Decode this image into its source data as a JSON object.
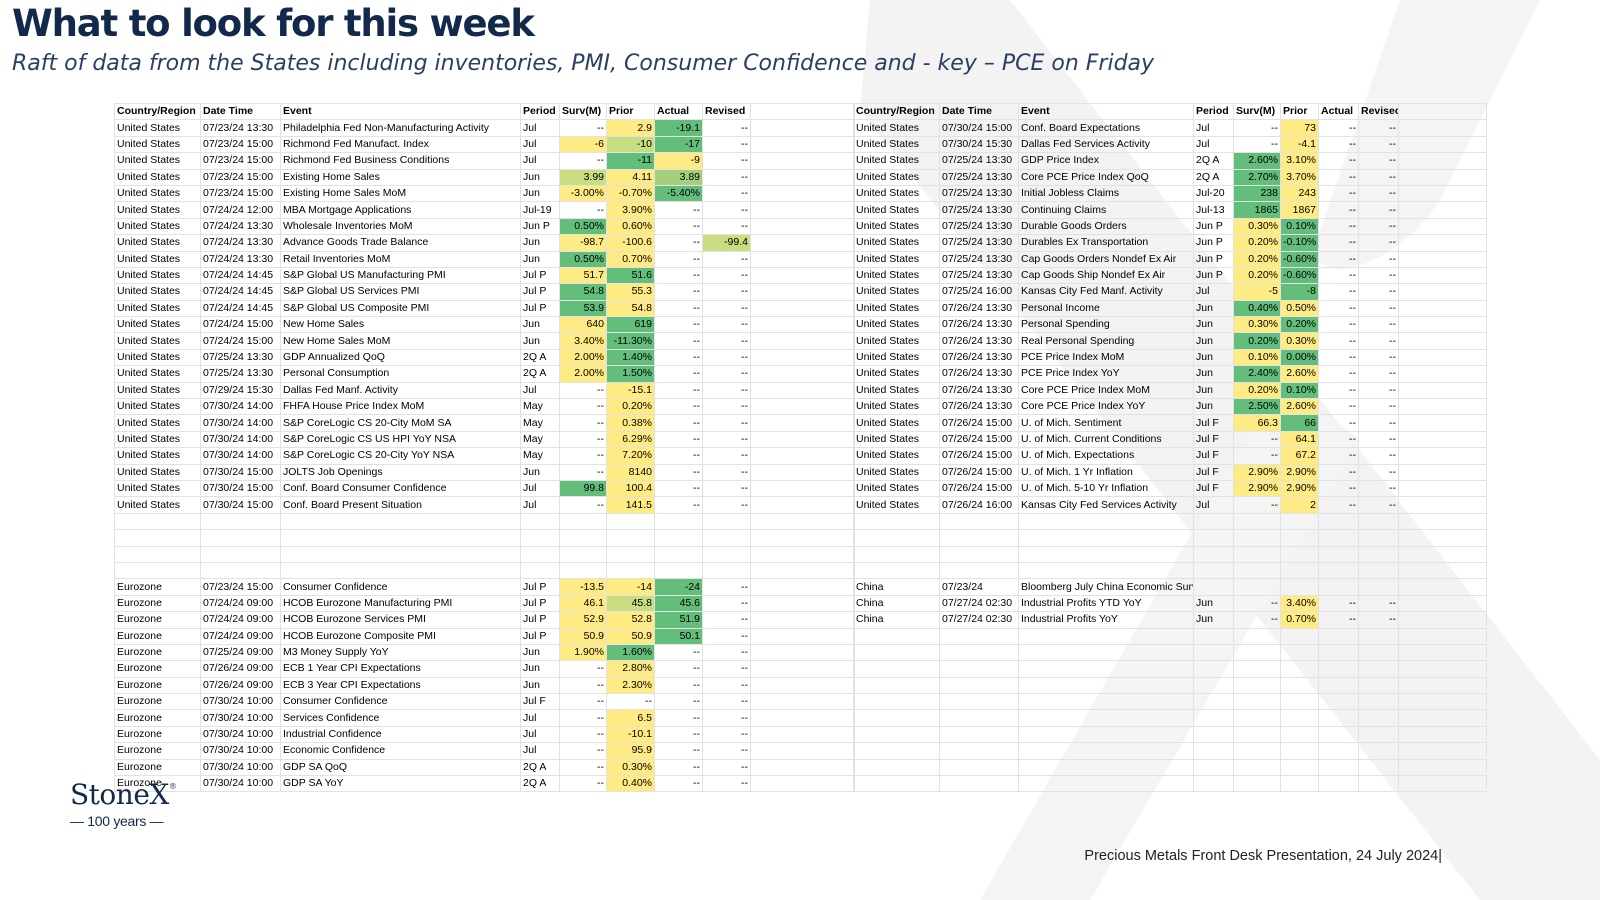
{
  "header": {
    "title": "What to look for this week",
    "subtitle": "Raft of data from the States including inventories, PMI, Consumer Confidence and - key – PCE on Friday"
  },
  "colors": {
    "title": "#13294b",
    "heat_dark_green": "#63be7b",
    "heat_mid_green": "#a4d07d",
    "heat_light_green": "#c8de81",
    "heat_yellow": "#ffeb84"
  },
  "watermark_icon": "stonex-x-watermark",
  "columns": [
    "Country/Region",
    "Date Time",
    "Event",
    "Period",
    "Surv(M)",
    "Prior",
    "Actual",
    "Revised"
  ],
  "columns_right": [
    "Country/Region",
    "Date Time",
    "Event",
    "Period",
    "Surv(M)",
    "Prior",
    "Actual",
    "Revisec"
  ],
  "left_table": {
    "rows": [
      [
        "United States",
        "07/23/24 13:30",
        "Philadelphia Fed Non-Manufacturing Activity",
        "Jul",
        "--",
        "2.9",
        "-19.1",
        "--"
      ],
      [
        "United States",
        "07/23/24 15:00",
        "Richmond Fed Manufact. Index",
        "Jul",
        "-6",
        "-10",
        "-17",
        "--"
      ],
      [
        "United States",
        "07/23/24 15:00",
        "Richmond Fed Business Conditions",
        "Jul",
        "--",
        "-11",
        "-9",
        "--"
      ],
      [
        "United States",
        "07/23/24 15:00",
        "Existing Home Sales",
        "Jun",
        "3.99",
        "4.11",
        "3.89",
        "--"
      ],
      [
        "United States",
        "07/23/24 15:00",
        "Existing Home Sales MoM",
        "Jun",
        "-3.00%",
        "-0.70%",
        "-5.40%",
        "--"
      ],
      [
        "United States",
        "07/24/24 12:00",
        "MBA Mortgage Applications",
        "Jul-19",
        "--",
        "3.90%",
        "--",
        "--"
      ],
      [
        "United States",
        "07/24/24 13:30",
        "Wholesale Inventories MoM",
        "Jun P",
        "0.50%",
        "0.60%",
        "--",
        "--"
      ],
      [
        "United States",
        "07/24/24 13:30",
        "Advance Goods Trade Balance",
        "Jun",
        "-98.7",
        "-100.6",
        "--",
        "-99.4"
      ],
      [
        "United States",
        "07/24/24 13:30",
        "Retail Inventories MoM",
        "Jun",
        "0.50%",
        "0.70%",
        "--",
        "--"
      ],
      [
        "United States",
        "07/24/24 14:45",
        "S&P Global US Manufacturing PMI",
        "Jul P",
        "51.7",
        "51.6",
        "--",
        "--"
      ],
      [
        "United States",
        "07/24/24 14:45",
        "S&P Global US Services PMI",
        "Jul P",
        "54.8",
        "55.3",
        "--",
        "--"
      ],
      [
        "United States",
        "07/24/24 14:45",
        "S&P Global US Composite PMI",
        "Jul P",
        "53.9",
        "54.8",
        "--",
        "--"
      ],
      [
        "United States",
        "07/24/24 15:00",
        "New Home Sales",
        "Jun",
        "640",
        "619",
        "--",
        "--"
      ],
      [
        "United States",
        "07/24/24 15:00",
        "New Home Sales MoM",
        "Jun",
        "3.40%",
        "-11.30%",
        "--",
        "--"
      ],
      [
        "United States",
        "07/25/24 13:30",
        "GDP Annualized QoQ",
        "2Q A",
        "2.00%",
        "1.40%",
        "--",
        "--"
      ],
      [
        "United States",
        "07/25/24 13:30",
        "Personal Consumption",
        "2Q A",
        "2.00%",
        "1.50%",
        "--",
        "--"
      ],
      [
        "United States",
        "07/29/24 15:30",
        "Dallas Fed Manf. Activity",
        "Jul",
        "--",
        "-15.1",
        "--",
        "--"
      ],
      [
        "United States",
        "07/30/24 14:00",
        "FHFA House Price Index MoM",
        "May",
        "--",
        "0.20%",
        "--",
        "--"
      ],
      [
        "United States",
        "07/30/24 14:00",
        "S&P CoreLogic CS 20-City MoM SA",
        "May",
        "--",
        "0.38%",
        "--",
        "--"
      ],
      [
        "United States",
        "07/30/24 14:00",
        "S&P CoreLogic CS US HPI YoY NSA",
        "May",
        "--",
        "6.29%",
        "--",
        "--"
      ],
      [
        "United States",
        "07/30/24 14:00",
        "S&P CoreLogic CS 20-City YoY NSA",
        "May",
        "--",
        "7.20%",
        "--",
        "--"
      ],
      [
        "United States",
        "07/30/24 15:00",
        "JOLTS Job Openings",
        "Jun",
        "--",
        "8140",
        "--",
        "--"
      ],
      [
        "United States",
        "07/30/24 15:00",
        "Conf. Board Consumer Confidence",
        "Jul",
        "99.8",
        "100.4",
        "--",
        "--"
      ],
      [
        "United States",
        "07/30/24 15:00",
        "Conf. Board Present Situation",
        "Jul",
        "--",
        "141.5",
        "--",
        "--"
      ],
      [
        "",
        "",
        "",
        "",
        "",
        "",
        "",
        ""
      ],
      [
        "",
        "",
        "",
        "",
        "",
        "",
        "",
        ""
      ],
      [
        "",
        "",
        "",
        "",
        "",
        "",
        "",
        ""
      ],
      [
        "",
        "",
        "",
        "",
        "",
        "",
        "",
        ""
      ],
      [
        "Eurozone",
        "07/23/24 15:00",
        "Consumer Confidence",
        "Jul P",
        "-13.5",
        "-14",
        "-24",
        "--"
      ],
      [
        "Eurozone",
        "07/24/24 09:00",
        "HCOB Eurozone Manufacturing PMI",
        "Jul P",
        "46.1",
        "45.8",
        "45.6",
        "--"
      ],
      [
        "Eurozone",
        "07/24/24 09:00",
        "HCOB Eurozone Services PMI",
        "Jul P",
        "52.9",
        "52.8",
        "51.9",
        "--"
      ],
      [
        "Eurozone",
        "07/24/24 09:00",
        "HCOB Eurozone Composite PMI",
        "Jul P",
        "50.9",
        "50.9",
        "50.1",
        "--"
      ],
      [
        "Eurozone",
        "07/25/24 09:00",
        "M3 Money Supply YoY",
        "Jun",
        "1.90%",
        "1.60%",
        "--",
        "--"
      ],
      [
        "Eurozone",
        "07/26/24 09:00",
        "ECB 1 Year CPI Expectations",
        "Jun",
        "--",
        "2.80%",
        "--",
        "--"
      ],
      [
        "Eurozone",
        "07/26/24 09:00",
        "ECB 3 Year CPI Expectations",
        "Jun",
        "--",
        "2.30%",
        "--",
        "--"
      ],
      [
        "Eurozone",
        "07/30/24 10:00",
        "Consumer Confidence",
        "Jul F",
        "--",
        "--",
        "--",
        "--"
      ],
      [
        "Eurozone",
        "07/30/24 10:00",
        "Services Confidence",
        "Jul",
        "--",
        "6.5",
        "--",
        "--"
      ],
      [
        "Eurozone",
        "07/30/24 10:00",
        "Industrial Confidence",
        "Jul",
        "--",
        "-10.1",
        "--",
        "--"
      ],
      [
        "Eurozone",
        "07/30/24 10:00",
        "Economic Confidence",
        "Jul",
        "--",
        "95.9",
        "--",
        "--"
      ],
      [
        "Eurozone",
        "07/30/24 10:00",
        "GDP SA QoQ",
        "2Q A",
        "--",
        "0.30%",
        "--",
        "--"
      ],
      [
        "Eurozone",
        "07/30/24 10:00",
        "GDP SA YoY",
        "2Q A",
        "--",
        "0.40%",
        "--",
        "--"
      ]
    ],
    "fills": [
      [
        "",
        "y",
        "g1",
        ""
      ],
      [
        "y",
        "g3",
        "g1",
        ""
      ],
      [
        "",
        "g1",
        "y",
        ""
      ],
      [
        "g3",
        "y",
        "g2",
        ""
      ],
      [
        "y",
        "y",
        "g1",
        ""
      ],
      [
        "",
        "y",
        "",
        ""
      ],
      [
        "g1",
        "y",
        "",
        ""
      ],
      [
        "y",
        "y",
        "",
        "g3"
      ],
      [
        "g1",
        "y",
        "",
        ""
      ],
      [
        "y",
        "g1",
        "",
        ""
      ],
      [
        "g1",
        "y",
        "",
        ""
      ],
      [
        "g1",
        "y",
        "",
        ""
      ],
      [
        "y",
        "g1",
        "",
        ""
      ],
      [
        "y",
        "g1",
        "",
        ""
      ],
      [
        "y",
        "g1",
        "",
        ""
      ],
      [
        "y",
        "g1",
        "",
        ""
      ],
      [
        "",
        "y",
        "",
        ""
      ],
      [
        "",
        "y",
        "",
        ""
      ],
      [
        "",
        "y",
        "",
        ""
      ],
      [
        "",
        "y",
        "",
        ""
      ],
      [
        "",
        "y",
        "",
        ""
      ],
      [
        "",
        "y",
        "",
        ""
      ],
      [
        "g1",
        "y",
        "",
        ""
      ],
      [
        "",
        "y",
        "",
        ""
      ],
      [
        "",
        "",
        "",
        ""
      ],
      [
        "",
        "",
        "",
        ""
      ],
      [
        "",
        "",
        "",
        ""
      ],
      [
        "",
        "",
        "",
        ""
      ],
      [
        "y",
        "y",
        "g1",
        ""
      ],
      [
        "y",
        "g3",
        "g1",
        ""
      ],
      [
        "y",
        "y",
        "g1",
        ""
      ],
      [
        "y",
        "y",
        "g1",
        ""
      ],
      [
        "y",
        "g1",
        "",
        ""
      ],
      [
        "",
        "y",
        "",
        ""
      ],
      [
        "",
        "y",
        "",
        ""
      ],
      [
        "",
        "",
        "",
        ""
      ],
      [
        "",
        "y",
        "",
        ""
      ],
      [
        "",
        "y",
        "",
        ""
      ],
      [
        "",
        "y",
        "",
        ""
      ],
      [
        "",
        "y",
        "",
        ""
      ],
      [
        "",
        "y",
        "",
        ""
      ]
    ]
  },
  "right_table": {
    "rows": [
      [
        "United States",
        "07/30/24 15:00",
        "Conf. Board Expectations",
        "Jul",
        "--",
        "73",
        "--",
        "--"
      ],
      [
        "United States",
        "07/30/24 15:30",
        "Dallas Fed Services Activity",
        "Jul",
        "--",
        "-4.1",
        "--",
        "--"
      ],
      [
        "United States",
        "07/25/24 13:30",
        "GDP Price Index",
        "2Q A",
        "2.60%",
        "3.10%",
        "--",
        "--"
      ],
      [
        "United States",
        "07/25/24 13:30",
        "Core PCE Price Index QoQ",
        "2Q A",
        "2.70%",
        "3.70%",
        "--",
        "--"
      ],
      [
        "United States",
        "07/25/24 13:30",
        "Initial Jobless Claims",
        "Jul-20",
        "238",
        "243",
        "--",
        "--"
      ],
      [
        "United States",
        "07/25/24 13:30",
        "Continuing Claims",
        "Jul-13",
        "1865",
        "1867",
        "--",
        "--"
      ],
      [
        "United States",
        "07/25/24 13:30",
        "Durable Goods Orders",
        "Jun P",
        "0.30%",
        "0.10%",
        "--",
        "--"
      ],
      [
        "United States",
        "07/25/24 13:30",
        "Durables Ex Transportation",
        "Jun P",
        "0.20%",
        "-0.10%",
        "--",
        "--"
      ],
      [
        "United States",
        "07/25/24 13:30",
        "Cap Goods Orders Nondef Ex Air",
        "Jun P",
        "0.20%",
        "-0.60%",
        "--",
        "--"
      ],
      [
        "United States",
        "07/25/24 13:30",
        "Cap Goods Ship Nondef Ex Air",
        "Jun P",
        "0.20%",
        "-0.60%",
        "--",
        "--"
      ],
      [
        "United States",
        "07/25/24 16:00",
        "Kansas City Fed Manf. Activity",
        "Jul",
        "-5",
        "-8",
        "--",
        "--"
      ],
      [
        "United States",
        "07/26/24 13:30",
        "Personal Income",
        "Jun",
        "0.40%",
        "0.50%",
        "--",
        "--"
      ],
      [
        "United States",
        "07/26/24 13:30",
        "Personal Spending",
        "Jun",
        "0.30%",
        "0.20%",
        "--",
        "--"
      ],
      [
        "United States",
        "07/26/24 13:30",
        "Real Personal Spending",
        "Jun",
        "0.20%",
        "0.30%",
        "--",
        "--"
      ],
      [
        "United States",
        "07/26/24 13:30",
        "PCE Price Index MoM",
        "Jun",
        "0.10%",
        "0.00%",
        "--",
        "--"
      ],
      [
        "United States",
        "07/26/24 13:30",
        "PCE Price Index YoY",
        "Jun",
        "2.40%",
        "2.60%",
        "--",
        "--"
      ],
      [
        "United States",
        "07/26/24 13:30",
        "Core PCE Price Index MoM",
        "Jun",
        "0.20%",
        "0.10%",
        "--",
        "--"
      ],
      [
        "United States",
        "07/26/24 13:30",
        "Core PCE Price Index YoY",
        "Jun",
        "2.50%",
        "2.60%",
        "--",
        "--"
      ],
      [
        "United States",
        "07/26/24 15:00",
        "U. of Mich. Sentiment",
        "Jul F",
        "66.3",
        "66",
        "--",
        "--"
      ],
      [
        "United States",
        "07/26/24 15:00",
        "U. of Mich. Current Conditions",
        "Jul F",
        "--",
        "64.1",
        "--",
        "--"
      ],
      [
        "United States",
        "07/26/24 15:00",
        "U. of Mich. Expectations",
        "Jul F",
        "--",
        "67.2",
        "--",
        "--"
      ],
      [
        "United States",
        "07/26/24 15:00",
        "U. of Mich. 1 Yr Inflation",
        "Jul F",
        "2.90%",
        "2.90%",
        "--",
        "--"
      ],
      [
        "United States",
        "07/26/24 15:00",
        "U. of Mich. 5-10 Yr Inflation",
        "Jul F",
        "2.90%",
        "2.90%",
        "--",
        "--"
      ],
      [
        "United States",
        "07/26/24 16:00",
        "Kansas City Fed Services Activity",
        "Jul",
        "--",
        "2",
        "--",
        "--"
      ],
      [
        "",
        "",
        "",
        "",
        "",
        "",
        "",
        ""
      ],
      [
        "",
        "",
        "",
        "",
        "",
        "",
        "",
        ""
      ],
      [
        "",
        "",
        "",
        "",
        "",
        "",
        "",
        ""
      ],
      [
        "",
        "",
        "",
        "",
        "",
        "",
        "",
        ""
      ],
      [
        "China",
        "07/23/24",
        "Bloomberg July China Economic Survey",
        "",
        "",
        "",
        "",
        ""
      ],
      [
        "China",
        "07/27/24 02:30",
        "Industrial Profits YTD YoY",
        "Jun",
        "--",
        "3.40%",
        "--",
        "--"
      ],
      [
        "China",
        "07/27/24 02:30",
        "Industrial Profits YoY",
        "Jun",
        "--",
        "0.70%",
        "--",
        "--"
      ],
      [
        "",
        "",
        "",
        "",
        "",
        "",
        "",
        ""
      ],
      [
        "",
        "",
        "",
        "",
        "",
        "",
        "",
        ""
      ],
      [
        "",
        "",
        "",
        "",
        "",
        "",
        "",
        ""
      ],
      [
        "",
        "",
        "",
        "",
        "",
        "",
        "",
        ""
      ],
      [
        "",
        "",
        "",
        "",
        "",
        "",
        "",
        ""
      ],
      [
        "",
        "",
        "",
        "",
        "",
        "",
        "",
        ""
      ],
      [
        "",
        "",
        "",
        "",
        "",
        "",
        "",
        ""
      ],
      [
        "",
        "",
        "",
        "",
        "",
        "",
        "",
        ""
      ],
      [
        "",
        "",
        "",
        "",
        "",
        "",
        "",
        ""
      ],
      [
        "",
        "",
        "",
        "",
        "",
        "",
        "",
        ""
      ]
    ],
    "fills": [
      [
        "",
        "y",
        "",
        ""
      ],
      [
        "",
        "y",
        "",
        ""
      ],
      [
        "g1",
        "y",
        "",
        ""
      ],
      [
        "g1",
        "y",
        "",
        ""
      ],
      [
        "g1",
        "y",
        "",
        ""
      ],
      [
        "g1",
        "y",
        "",
        ""
      ],
      [
        "y",
        "g1",
        "",
        ""
      ],
      [
        "y",
        "g1",
        "",
        ""
      ],
      [
        "y",
        "g1",
        "",
        ""
      ],
      [
        "y",
        "g1",
        "",
        ""
      ],
      [
        "y",
        "g1",
        "",
        ""
      ],
      [
        "g1",
        "y",
        "",
        ""
      ],
      [
        "y",
        "g1",
        "",
        ""
      ],
      [
        "g1",
        "y",
        "",
        ""
      ],
      [
        "y",
        "g1",
        "",
        ""
      ],
      [
        "g1",
        "y",
        "",
        ""
      ],
      [
        "y",
        "g1",
        "",
        ""
      ],
      [
        "g1",
        "y",
        "",
        ""
      ],
      [
        "y",
        "g1",
        "",
        ""
      ],
      [
        "",
        "y",
        "",
        ""
      ],
      [
        "",
        "y",
        "",
        ""
      ],
      [
        "y",
        "y",
        "",
        ""
      ],
      [
        "y",
        "y",
        "",
        ""
      ],
      [
        "",
        "y",
        "",
        ""
      ],
      [
        "",
        "",
        "",
        ""
      ],
      [
        "",
        "",
        "",
        ""
      ],
      [
        "",
        "",
        "",
        ""
      ],
      [
        "",
        "",
        "",
        ""
      ],
      [
        "",
        "",
        "",
        ""
      ],
      [
        "",
        "y",
        "",
        ""
      ],
      [
        "",
        "y",
        "",
        ""
      ],
      [
        "",
        "",
        "",
        ""
      ],
      [
        "",
        "",
        "",
        ""
      ],
      [
        "",
        "",
        "",
        ""
      ],
      [
        "",
        "",
        "",
        ""
      ],
      [
        "",
        "",
        "",
        ""
      ],
      [
        "",
        "",
        "",
        ""
      ],
      [
        "",
        "",
        "",
        ""
      ],
      [
        "",
        "",
        "",
        ""
      ],
      [
        "",
        "",
        "",
        ""
      ],
      [
        "",
        "",
        "",
        ""
      ]
    ]
  },
  "logo": {
    "name": "StoneX",
    "mark": "®",
    "tagline": "— 100 years —"
  },
  "footer": {
    "text": "Precious Metals Front Desk Presentation, 24 July 2024|"
  }
}
